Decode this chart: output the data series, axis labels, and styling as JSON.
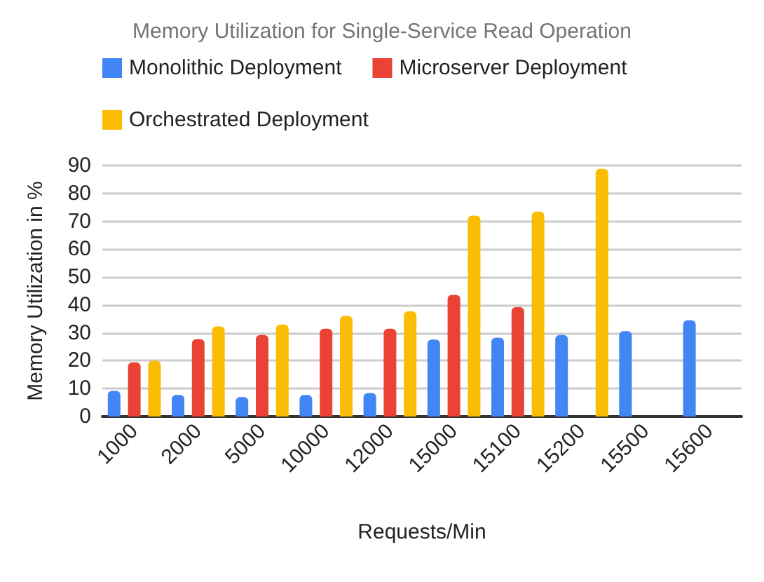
{
  "chart_data": {
    "type": "bar",
    "title": "Memory Utilization for Single-Service Read Operation",
    "xlabel": "Requests/Min",
    "ylabel": "Memory Utilization in %",
    "categories": [
      "1000",
      "2000",
      "5000",
      "10000",
      "12000",
      "15000",
      "15100",
      "15200",
      "15500",
      "15600"
    ],
    "series": [
      {
        "name": "Monolithic Deployment",
        "color": "#4285f4",
        "values": [
          9.2,
          7.7,
          7,
          7.7,
          8.4,
          27.6,
          28.3,
          29.2,
          30.6,
          34.5
        ]
      },
      {
        "name": "Microserver Deployment",
        "color": "#ea4335",
        "values": [
          19.4,
          27.7,
          29.2,
          31.5,
          31.5,
          43.6,
          39.2,
          null,
          null,
          null
        ]
      },
      {
        "name": "Orchestrated Deployment",
        "color": "#fbbc04",
        "values": [
          20,
          32.3,
          33,
          36.1,
          37.7,
          72,
          73.5,
          88.8,
          null,
          null
        ]
      }
    ],
    "ylim": [
      0,
      90
    ],
    "yticks": [
      0,
      10,
      20,
      30,
      40,
      50,
      60,
      70,
      80,
      90
    ],
    "grid": "y",
    "legend": "top"
  }
}
